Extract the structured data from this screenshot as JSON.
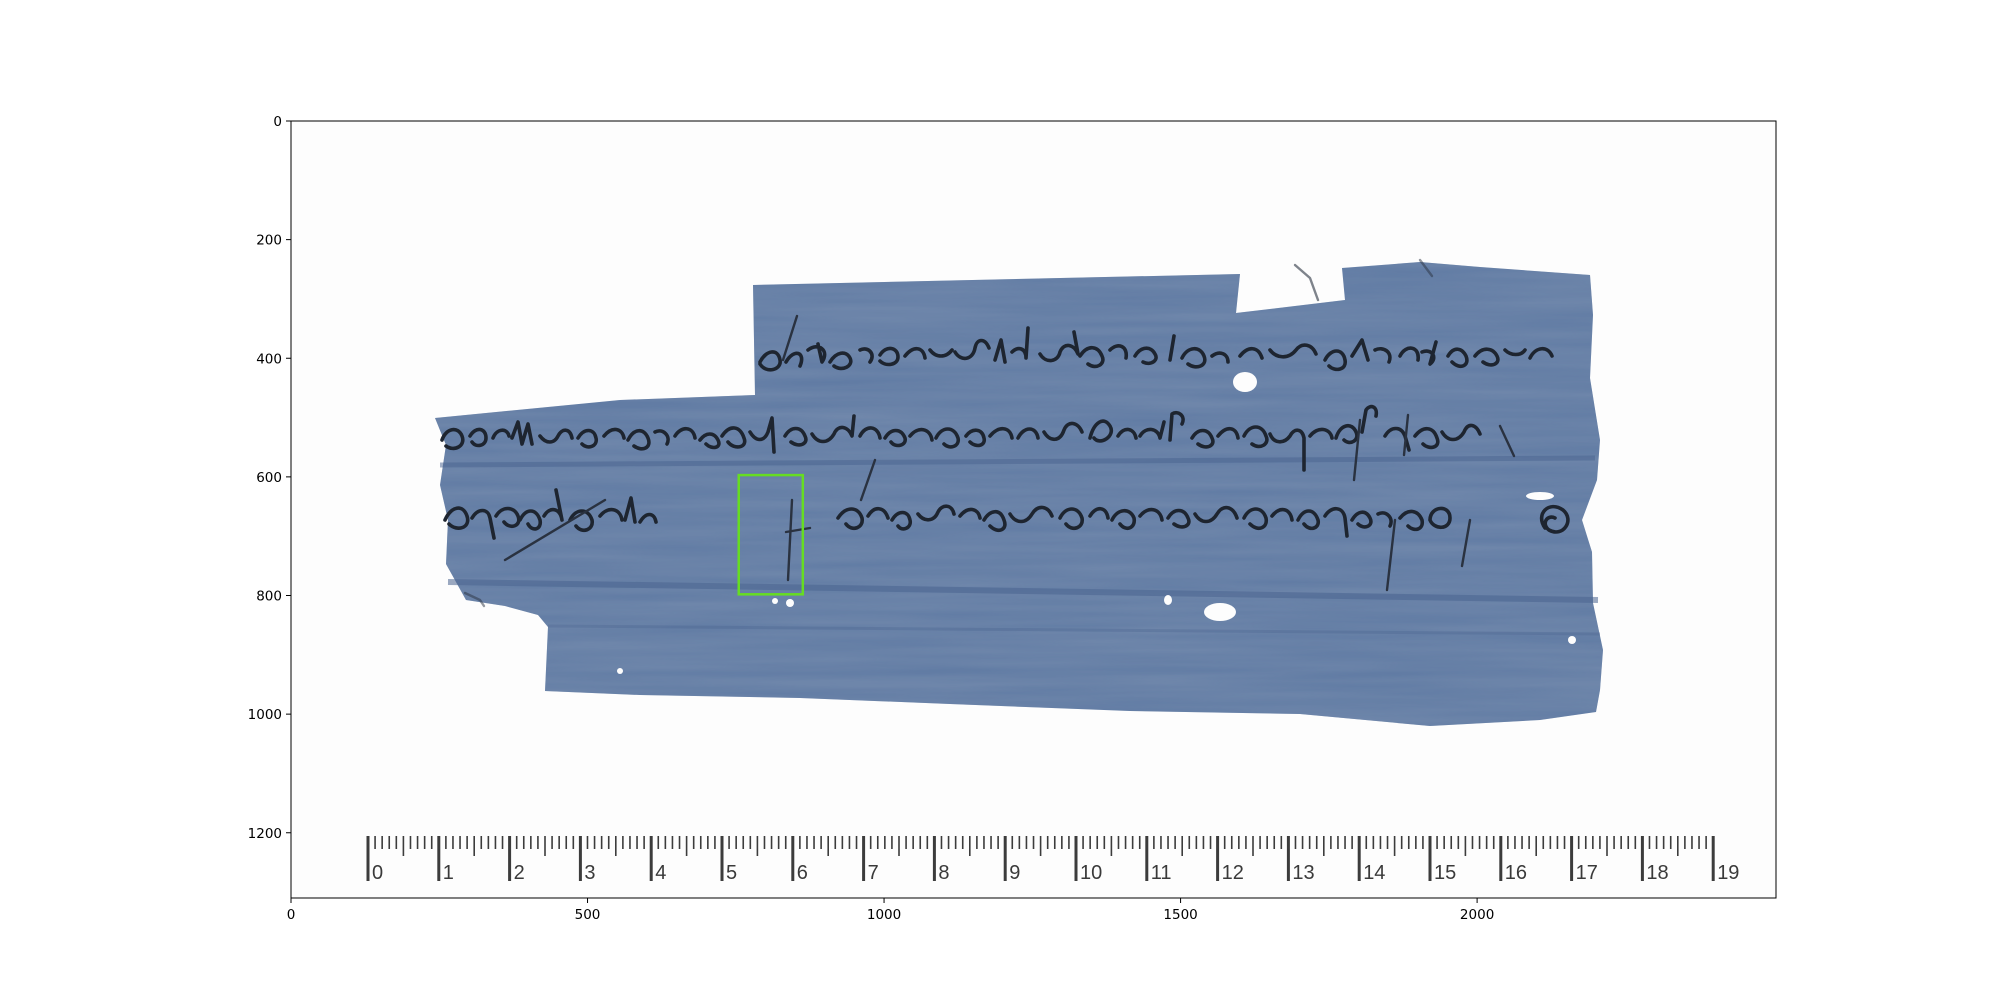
{
  "figure": {
    "x_ticks": [
      "0",
      "500",
      "1000",
      "1500",
      "2000"
    ],
    "y_ticks": [
      "0",
      "200",
      "400",
      "600",
      "800",
      "1000",
      "1200"
    ],
    "x_range": [
      0,
      2504
    ],
    "y_range": [
      1310,
      0
    ]
  },
  "papyrus": {
    "color": "#5f7aa3",
    "dark_color": "#4a6490"
  },
  "ruler": {
    "numbers": [
      "0",
      "1",
      "2",
      "3",
      "4",
      "5",
      "6",
      "7",
      "8",
      "9",
      "10",
      "11",
      "12",
      "13",
      "14",
      "15",
      "16",
      "17",
      "18",
      "19"
    ]
  },
  "highlight": {
    "color": "#66dd22",
    "box": {
      "x0": 755,
      "y0": 597,
      "x1": 863,
      "y1": 798
    }
  }
}
